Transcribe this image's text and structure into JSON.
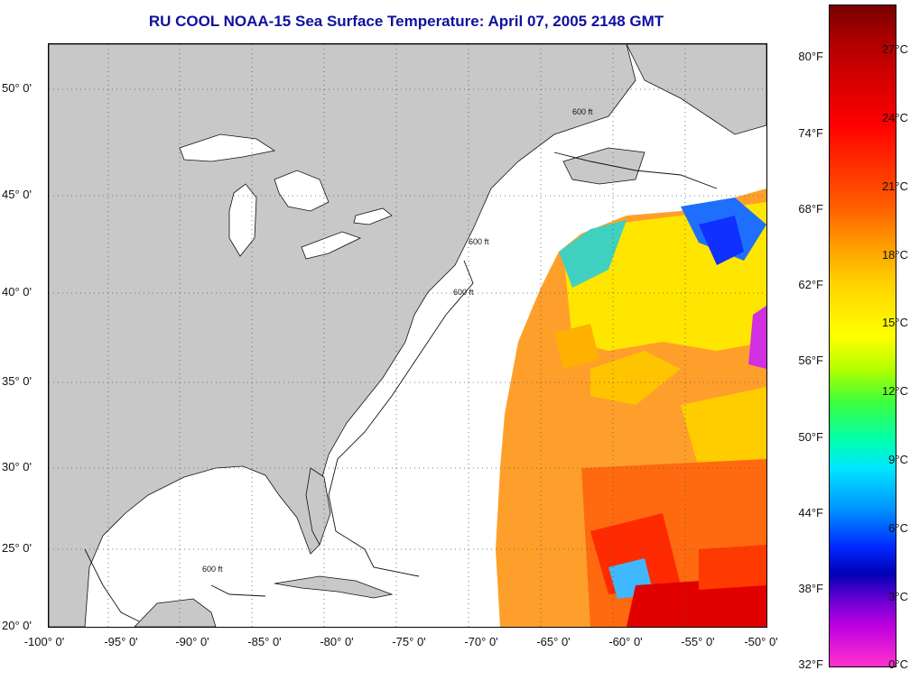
{
  "title": "RU COOL  NOAA-15  Sea Surface Temperature:  April 07, 2005 2148 GMT",
  "map": {
    "lat_labels": [
      "50° 0'",
      "45° 0'",
      "40° 0'",
      "35° 0'",
      "30° 0'",
      "25° 0'",
      "20° 0'"
    ],
    "lon_labels": [
      "-100° 0'",
      "-95° 0'",
      "-90° 0'",
      "-85° 0'",
      "-80° 0'",
      "-75° 0'",
      "-70° 0'",
      "-65° 0'",
      "-60° 0'",
      "-55° 0'",
      "-50° 0'"
    ],
    "contour_label": "600 ft",
    "land_color": "#c8c8c8",
    "grid": "dotted"
  },
  "colorbar": {
    "fahrenheit_labels": [
      "80°F",
      "74°F",
      "68°F",
      "62°F",
      "56°F",
      "50°F",
      "44°F",
      "38°F",
      "32°F"
    ],
    "celsius_labels": [
      "27°C",
      "24°C",
      "21°C",
      "18°C",
      "15°C",
      "12°C",
      "9°C",
      "6°C",
      "3°C",
      "0°C"
    ],
    "colors": [
      "#7a0000",
      "#ff0000",
      "#ff9900",
      "#ffff00",
      "#3cff3c",
      "#00e6ff",
      "#0028ff",
      "#6a00d4",
      "#ff33cc"
    ]
  }
}
